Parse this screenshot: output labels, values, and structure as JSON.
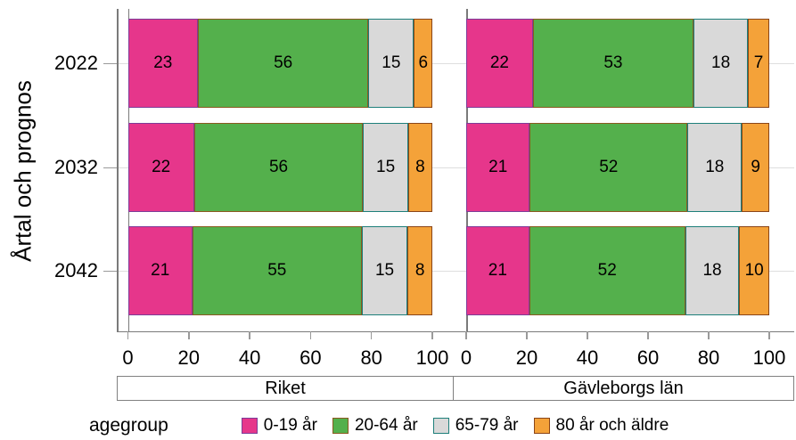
{
  "figure": {
    "y_axis_title": "Årtal och prognos",
    "panel_labels": [
      "Riket",
      "Gävleborgs län"
    ]
  },
  "legend": {
    "title": "agegroup",
    "items": [
      {
        "label": "0-19 år",
        "fill": "#e6368b",
        "border": "#7d3c98"
      },
      {
        "label": "20-64 år",
        "fill": "#54b04c",
        "border": "#8a5a20"
      },
      {
        "label": "65-79 år",
        "fill": "#d9d9d9",
        "border": "#1e7f7a"
      },
      {
        "label": "80 år och äldre",
        "fill": "#f4a239",
        "border": "#8a4518"
      }
    ]
  },
  "chart_data": {
    "type": "bar",
    "orientation": "horizontal",
    "stacked": true,
    "unit": "percent",
    "ylabel": "Årtal och prognos",
    "categories": [
      "2022",
      "2032",
      "2042"
    ],
    "xlim": [
      0,
      100
    ],
    "x_ticks": [
      0,
      20,
      40,
      60,
      80,
      100
    ],
    "x_tick_labels": [
      "0",
      "20",
      "40",
      "60",
      "80",
      "100"
    ],
    "grid": "horizontal-light",
    "legend_title": "agegroup",
    "legend_position": "bottom",
    "groups": [
      {
        "name": "Riket",
        "series": [
          {
            "name": "0-19 år",
            "values": [
              23,
              22,
              21
            ]
          },
          {
            "name": "20-64 år",
            "values": [
              56,
              56,
              55
            ]
          },
          {
            "name": "65-79 år",
            "values": [
              15,
              15,
              15
            ]
          },
          {
            "name": "80 år och äldre",
            "values": [
              6,
              8,
              8
            ]
          }
        ]
      },
      {
        "name": "Gävleborgs län",
        "series": [
          {
            "name": "0-19 år",
            "values": [
              22,
              21,
              21
            ]
          },
          {
            "name": "20-64 år",
            "values": [
              53,
              52,
              52
            ]
          },
          {
            "name": "65-79 år",
            "values": [
              18,
              18,
              18
            ]
          },
          {
            "name": "80 år och äldre",
            "values": [
              7,
              9,
              10
            ]
          }
        ]
      }
    ]
  },
  "colors": {
    "axis_line": "#7a7a7a",
    "tick": "#9a9a9a",
    "gridline": "#dedede",
    "strip_border": "#808080",
    "text": "#000000",
    "background": "#ffffff"
  }
}
